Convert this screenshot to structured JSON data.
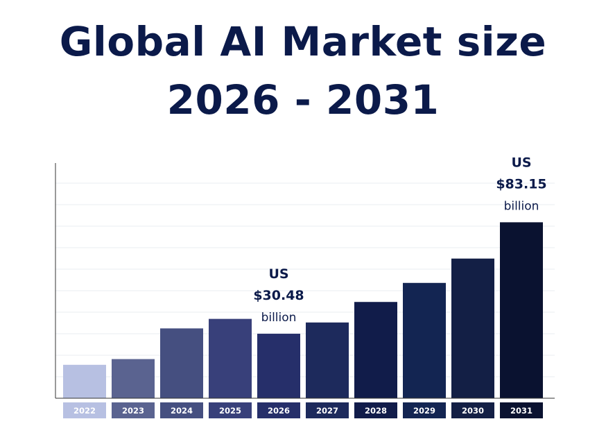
{
  "title_line1": "Global AI Market size",
  "title_line2": "2026 - 2031",
  "chart_data": {
    "type": "bar",
    "categories": [
      "2022",
      "2023",
      "2024",
      "2025",
      "2026",
      "2027",
      "2028",
      "2029",
      "2030",
      "2031"
    ],
    "values": [
      15.8,
      18.5,
      33.0,
      37.5,
      30.48,
      35.8,
      45.5,
      54.5,
      66.0,
      83.15
    ],
    "ylim": [
      0,
      110
    ],
    "grid": true,
    "bar_colors": [
      "#b7c0e2",
      "#5a6390",
      "#454f80",
      "#38407a",
      "#262f6a",
      "#1d2a5c",
      "#111c4a",
      "#132552",
      "#131f45",
      "#0a1230"
    ],
    "label_color": "#0b1a4a",
    "annotations": [
      {
        "category": "2026",
        "line1": "US",
        "line2": "$30.48",
        "line3": "billion"
      },
      {
        "category": "2031",
        "line1": "US",
        "line2": "$83.15",
        "line3": "billion"
      }
    ]
  }
}
